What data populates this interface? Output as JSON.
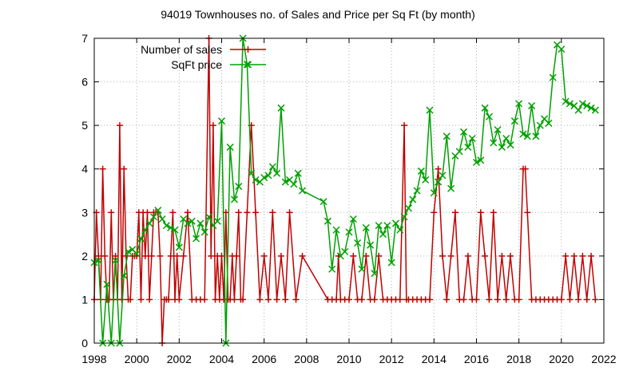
{
  "chart_data": {
    "type": "line",
    "title": "94019 Townhouses no. of Sales and Price per Sq Ft (by month)",
    "xlabel": "",
    "ylabel": "",
    "xlim": [
      1998,
      2022
    ],
    "ylim": [
      0,
      7
    ],
    "xticks": [
      1998,
      2000,
      2002,
      2004,
      2006,
      2008,
      2010,
      2012,
      2014,
      2016,
      2018,
      2020,
      2022
    ],
    "yticks": [
      0,
      1,
      2,
      3,
      4,
      5,
      6,
      7
    ],
    "grid": true,
    "legend_position": "top-left",
    "series": [
      {
        "name": "Number of sales",
        "color": "#c00000",
        "marker": "plus",
        "x": [
          1998.0,
          1998.1,
          1998.2,
          1998.3,
          1998.4,
          1998.5,
          1998.6,
          1998.7,
          1998.8,
          1998.9,
          1999.0,
          1999.1,
          1999.2,
          1999.3,
          1999.4,
          1999.5,
          1999.6,
          1999.7,
          1999.8,
          1999.9,
          2000.0,
          2000.1,
          2000.2,
          2000.3,
          2000.4,
          2000.5,
          2000.6,
          2000.7,
          2000.8,
          2000.9,
          2001.0,
          2001.1,
          2001.2,
          2001.3,
          2001.4,
          2001.5,
          2001.6,
          2001.7,
          2001.8,
          2001.9,
          2002.0,
          2002.2,
          2002.4,
          2002.6,
          2002.8,
          2003.0,
          2003.2,
          2003.4,
          2003.5,
          2003.6,
          2003.7,
          2003.8,
          2003.9,
          2004.0,
          2004.1,
          2004.2,
          2004.3,
          2004.4,
          2004.5,
          2004.6,
          2004.7,
          2004.8,
          2004.9,
          2005.0,
          2005.2,
          2005.4,
          2005.6,
          2005.8,
          2006.0,
          2006.2,
          2006.4,
          2006.6,
          2006.8,
          2007.0,
          2007.2,
          2007.5,
          2007.8,
          2009.0,
          2009.2,
          2009.4,
          2009.5,
          2009.6,
          2009.8,
          2010.0,
          2010.2,
          2010.4,
          2010.6,
          2010.8,
          2011.0,
          2011.2,
          2011.4,
          2011.6,
          2011.8,
          2012.0,
          2012.2,
          2012.4,
          2012.6,
          2012.7,
          2012.8,
          2013.0,
          2013.2,
          2013.4,
          2013.6,
          2013.8,
          2014.0,
          2014.2,
          2014.4,
          2014.6,
          2014.8,
          2015.0,
          2015.2,
          2015.4,
          2015.6,
          2015.8,
          2016.0,
          2016.2,
          2016.4,
          2016.6,
          2016.8,
          2017.0,
          2017.2,
          2017.4,
          2017.6,
          2017.8,
          2018.0,
          2018.2,
          2018.3,
          2018.4,
          2018.6,
          2018.8,
          2019.0,
          2019.2,
          2019.4,
          2019.6,
          2019.8,
          2020.0,
          2020.2,
          2020.4,
          2020.6,
          2020.8,
          2021.0,
          2021.2,
          2021.4,
          2021.6
        ],
        "y": [
          1,
          3,
          2,
          1,
          4,
          2,
          1,
          1,
          3,
          1,
          2,
          1,
          5,
          1,
          4,
          2,
          1,
          1,
          2,
          2,
          2,
          3,
          1,
          3,
          2,
          3,
          1,
          2,
          3,
          3,
          3,
          2,
          0,
          1,
          1,
          1,
          2,
          3,
          1,
          2,
          1,
          2,
          3,
          1,
          1,
          1,
          1,
          7,
          2,
          5,
          1,
          2,
          1,
          2,
          1,
          3,
          1,
          1,
          2,
          1,
          2,
          3,
          1,
          1,
          3,
          5,
          3,
          1,
          2,
          1,
          3,
          1,
          2,
          1,
          3,
          1,
          2,
          1,
          1,
          1,
          2,
          1,
          1,
          1,
          2,
          1,
          1,
          2,
          1,
          1,
          2,
          1,
          1,
          1,
          1,
          1,
          5,
          1,
          1,
          1,
          1,
          1,
          1,
          1,
          3,
          4,
          2,
          1,
          2,
          3,
          1,
          1,
          2,
          1,
          1,
          3,
          2,
          1,
          3,
          1,
          2,
          1,
          2,
          1,
          1,
          4,
          4,
          3,
          1,
          1,
          1,
          1,
          1,
          1,
          1,
          1,
          2,
          1,
          2,
          1,
          2,
          1,
          2,
          1
        ]
      },
      {
        "name": "SqFt price",
        "color": "#00a000",
        "marker": "x",
        "x": [
          1998.0,
          1998.2,
          1998.4,
          1998.6,
          1998.8,
          1999.0,
          1999.2,
          1999.4,
          1999.6,
          1999.8,
          2000.0,
          2000.2,
          2000.4,
          2000.6,
          2000.8,
          2001.0,
          2001.2,
          2001.4,
          2001.6,
          2001.8,
          2002.0,
          2002.2,
          2002.4,
          2002.6,
          2002.8,
          2003.0,
          2003.2,
          2003.4,
          2003.6,
          2003.8,
          2004.0,
          2004.2,
          2004.4,
          2004.6,
          2004.8,
          2005.0,
          2005.2,
          2005.4,
          2005.6,
          2005.8,
          2006.0,
          2006.2,
          2006.4,
          2006.6,
          2006.8,
          2007.0,
          2007.2,
          2007.4,
          2007.6,
          2007.8,
          2008.8,
          2009.0,
          2009.2,
          2009.4,
          2009.6,
          2009.8,
          2010.0,
          2010.2,
          2010.4,
          2010.6,
          2010.8,
          2011.0,
          2011.2,
          2011.4,
          2011.6,
          2011.8,
          2012.0,
          2012.2,
          2012.4,
          2012.6,
          2012.8,
          2013.0,
          2013.2,
          2013.4,
          2013.6,
          2013.8,
          2014.0,
          2014.2,
          2014.4,
          2014.6,
          2014.8,
          2015.0,
          2015.2,
          2015.4,
          2015.6,
          2015.8,
          2016.0,
          2016.2,
          2016.4,
          2016.6,
          2016.8,
          2017.0,
          2017.2,
          2017.4,
          2017.6,
          2017.8,
          2018.0,
          2018.2,
          2018.4,
          2018.6,
          2018.8,
          2019.0,
          2019.2,
          2019.4,
          2019.6,
          2019.8,
          2020.0,
          2020.2,
          2020.4,
          2020.6,
          2020.8,
          2021.0,
          2021.2,
          2021.4,
          2021.6
        ],
        "y": [
          1.85,
          1.9,
          0.0,
          1.35,
          0.0,
          1.9,
          0.0,
          1.55,
          2.1,
          2.15,
          2.05,
          2.4,
          2.6,
          2.75,
          2.9,
          3.05,
          2.85,
          2.7,
          2.65,
          2.6,
          2.2,
          2.85,
          2.75,
          2.8,
          2.4,
          2.75,
          2.55,
          2.9,
          2.7,
          2.8,
          5.1,
          0.0,
          4.5,
          3.3,
          3.6,
          7.0,
          6.4,
          3.9,
          3.75,
          3.7,
          3.8,
          3.85,
          4.05,
          3.9,
          5.4,
          3.7,
          3.75,
          3.65,
          3.9,
          3.5,
          3.25,
          2.8,
          1.7,
          2.6,
          2.0,
          2.1,
          2.55,
          2.85,
          2.3,
          1.7,
          2.65,
          2.25,
          1.6,
          2.7,
          2.5,
          2.7,
          1.85,
          2.75,
          2.6,
          2.9,
          3.1,
          3.3,
          3.5,
          3.95,
          3.75,
          5.35,
          3.45,
          3.7,
          3.85,
          4.75,
          3.55,
          4.3,
          4.4,
          4.85,
          4.5,
          4.7,
          4.15,
          4.2,
          5.4,
          5.2,
          4.6,
          4.9,
          4.5,
          4.7,
          4.55,
          5.1,
          5.5,
          4.8,
          4.75,
          5.45,
          4.75,
          5.0,
          5.15,
          5.05,
          6.1,
          6.85,
          6.75,
          5.55,
          5.5,
          5.45,
          5.35,
          5.5,
          5.45,
          5.4,
          5.35
        ]
      }
    ]
  }
}
